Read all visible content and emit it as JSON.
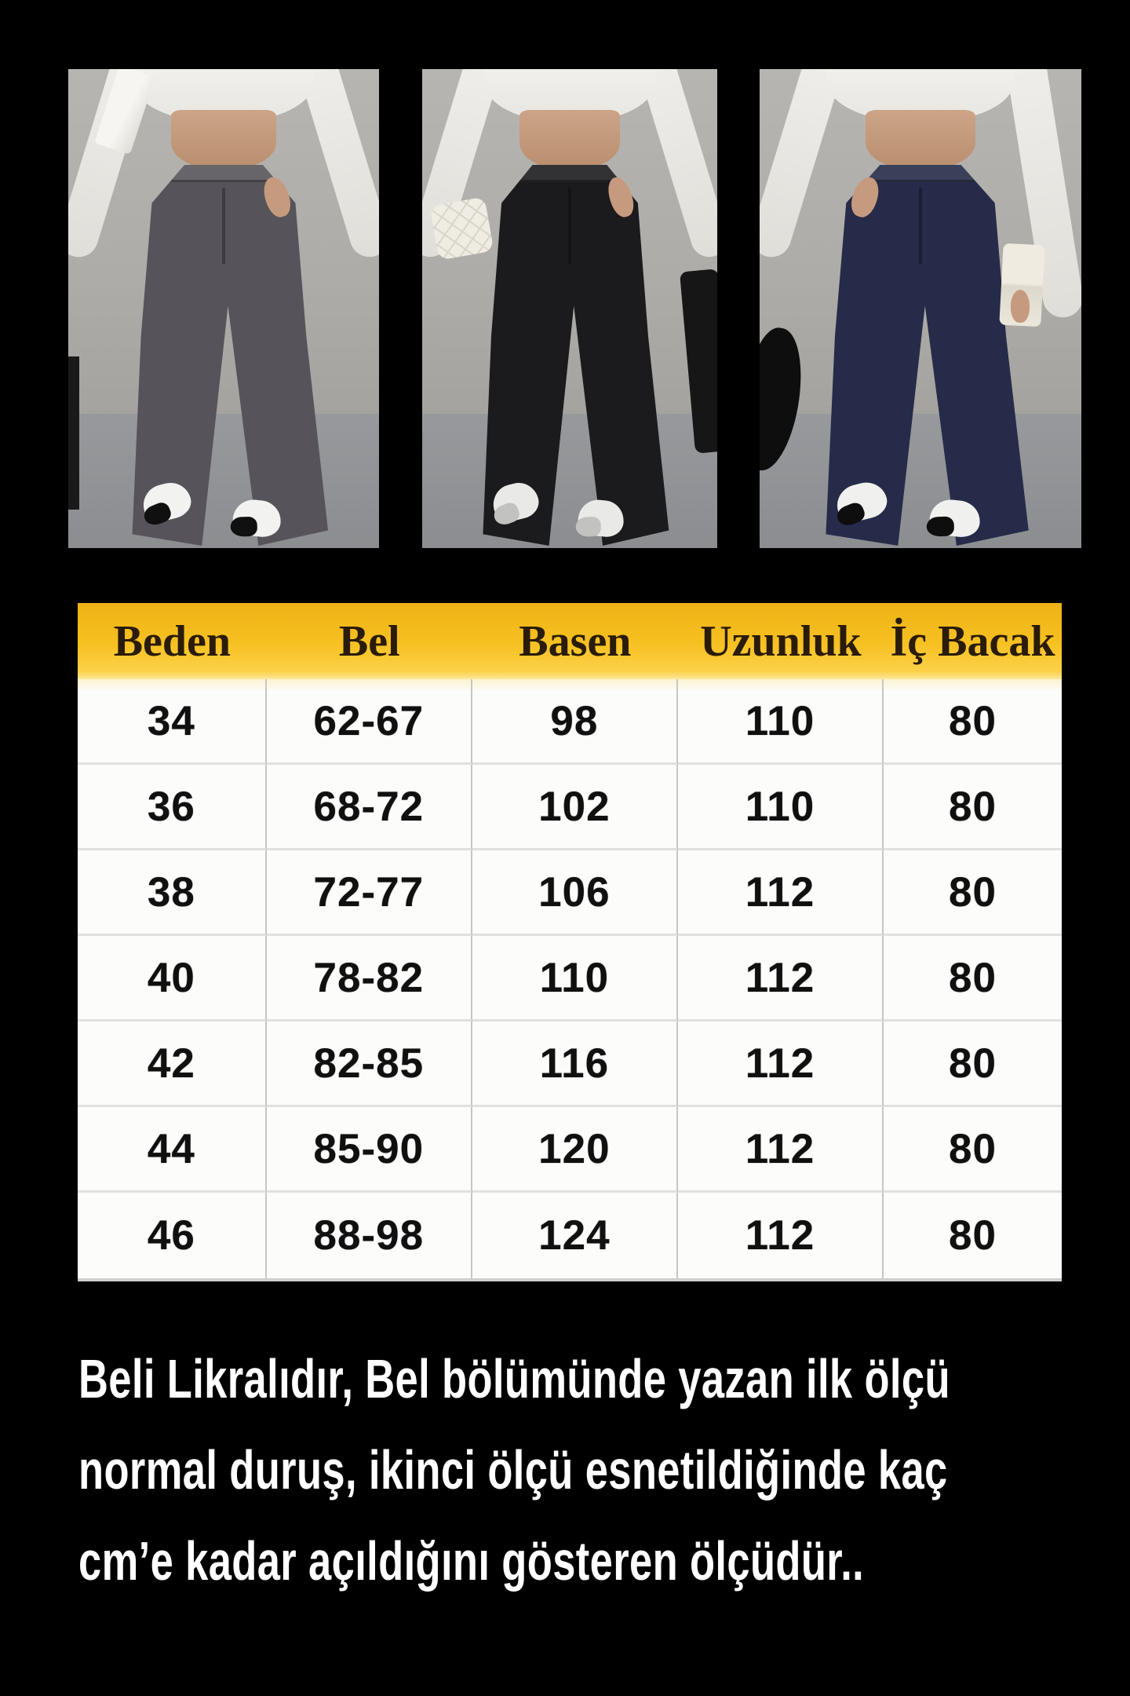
{
  "page": {
    "background_color": "#000000"
  },
  "photos": {
    "variants": [
      {
        "name": "gray-trousers",
        "pants_color": "#56545a"
      },
      {
        "name": "black-trousers",
        "pants_color": "#1b1b1e"
      },
      {
        "name": "navy-trousers",
        "pants_color": "#252b48"
      }
    ]
  },
  "size_table": {
    "header_bg_color": "#f7c122",
    "header_text_color": "#2a1c08",
    "headers": [
      "Beden",
      "Bel",
      "Basen",
      "Uzunluk",
      "İç Bacak"
    ],
    "rows": [
      [
        "34",
        "62-67",
        "98",
        "110",
        "80"
      ],
      [
        "36",
        "68-72",
        "102",
        "110",
        "80"
      ],
      [
        "38",
        "72-77",
        "106",
        "112",
        "80"
      ],
      [
        "40",
        "78-82",
        "110",
        "112",
        "80"
      ],
      [
        "42",
        "82-85",
        "116",
        "112",
        "80"
      ],
      [
        "44",
        "85-90",
        "120",
        "112",
        "80"
      ],
      [
        "46",
        "88-98",
        "124",
        "112",
        "80"
      ]
    ]
  },
  "caption": {
    "text_color": "#ffffff",
    "lines": [
      "Beli Likralıdır, Bel bölümünde yazan ilk ölçü",
      "normal duruş, ikinci ölçü esnetildiğinde kaç",
      "cm’e kadar açıldığını gösteren ölçüdür.."
    ]
  }
}
